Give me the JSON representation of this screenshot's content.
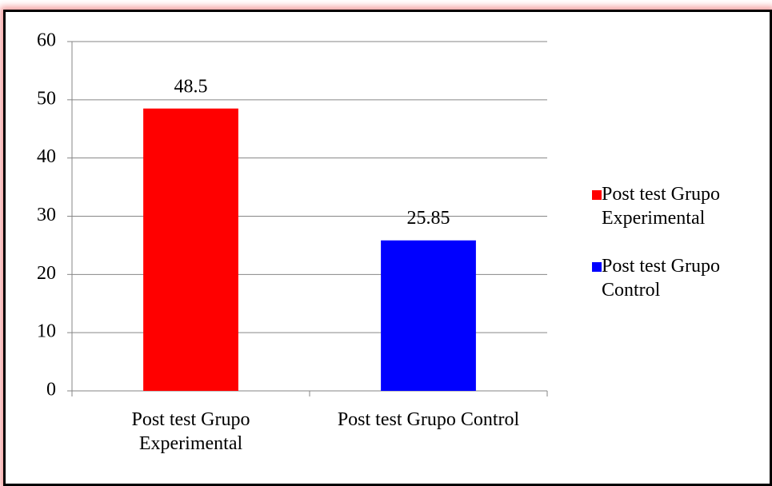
{
  "chart_data": {
    "type": "bar",
    "categories": [
      "Post test Grupo Experimental",
      "Post test Grupo Control"
    ],
    "values": [
      48.5,
      25.85
    ],
    "colors": [
      "#ff0000",
      "#0000ff"
    ],
    "ylim": [
      0,
      60
    ],
    "yticks": [
      0,
      10,
      20,
      30,
      40,
      50,
      60
    ],
    "grid": true,
    "legend": "right"
  }
}
